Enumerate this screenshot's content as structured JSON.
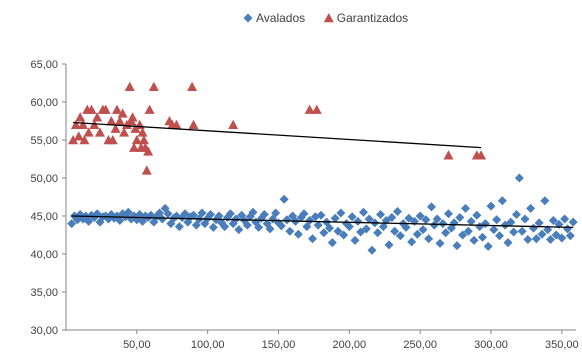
{
  "chart_data": {
    "type": "scatter",
    "legend_position": "top",
    "grid": false,
    "xlim": [
      0,
      360
    ],
    "ylim": [
      30,
      65
    ],
    "x_ticks": [
      50,
      100,
      150,
      200,
      250,
      300,
      350
    ],
    "x_tick_labels": [
      "50,00",
      "100,00",
      "150,00",
      "200,00",
      "250,00",
      "300,00",
      "350,00"
    ],
    "y_ticks": [
      30,
      35,
      40,
      45,
      50,
      55,
      60,
      65
    ],
    "y_tick_labels": [
      "30,00",
      "35,00",
      "40,00",
      "45,00",
      "50,00",
      "55,00",
      "60,00",
      "65,00"
    ],
    "series": [
      {
        "name": "Avalados",
        "marker": "diamond",
        "color": "#4a7ebb",
        "points": [
          [
            4,
            44.0
          ],
          [
            6,
            45.0
          ],
          [
            8,
            44.5
          ],
          [
            10,
            45.2
          ],
          [
            12,
            44.6
          ],
          [
            14,
            45.0
          ],
          [
            16,
            44.3
          ],
          [
            18,
            45.1
          ],
          [
            20,
            44.8
          ],
          [
            22,
            45.3
          ],
          [
            24,
            44.2
          ],
          [
            26,
            44.9
          ],
          [
            28,
            45.0
          ],
          [
            30,
            44.6
          ],
          [
            32,
            45.2
          ],
          [
            34,
            44.7
          ],
          [
            36,
            45.0
          ],
          [
            38,
            44.4
          ],
          [
            40,
            45.3
          ],
          [
            42,
            44.9
          ],
          [
            44,
            45.5
          ],
          [
            46,
            44.6
          ],
          [
            48,
            45.0
          ],
          [
            50,
            44.5
          ],
          [
            52,
            45.2
          ],
          [
            54,
            44.3
          ],
          [
            56,
            45.0
          ],
          [
            58,
            44.8
          ],
          [
            60,
            45.1
          ],
          [
            62,
            44.2
          ],
          [
            64,
            44.9
          ],
          [
            66,
            45.4
          ],
          [
            68,
            44.6
          ],
          [
            70,
            46.0
          ],
          [
            72,
            45.3
          ],
          [
            74,
            44.0
          ],
          [
            76,
            44.7
          ],
          [
            78,
            45.0
          ],
          [
            80,
            43.6
          ],
          [
            82,
            44.8
          ],
          [
            84,
            45.3
          ],
          [
            86,
            44.2
          ],
          [
            88,
            44.9
          ],
          [
            90,
            45.1
          ],
          [
            92,
            43.8
          ],
          [
            94,
            44.6
          ],
          [
            96,
            45.4
          ],
          [
            98,
            44.0
          ],
          [
            100,
            44.7
          ],
          [
            102,
            45.2
          ],
          [
            104,
            43.5
          ],
          [
            106,
            44.5
          ],
          [
            108,
            45.0
          ],
          [
            110,
            44.1
          ],
          [
            112,
            43.6
          ],
          [
            114,
            44.8
          ],
          [
            116,
            45.3
          ],
          [
            118,
            44.0
          ],
          [
            120,
            44.6
          ],
          [
            122,
            43.2
          ],
          [
            124,
            45.1
          ],
          [
            126,
            44.4
          ],
          [
            128,
            43.8
          ],
          [
            130,
            44.9
          ],
          [
            132,
            45.5
          ],
          [
            134,
            44.2
          ],
          [
            136,
            43.5
          ],
          [
            138,
            44.7
          ],
          [
            140,
            45.2
          ],
          [
            142,
            44.0
          ],
          [
            144,
            43.3
          ],
          [
            146,
            44.6
          ],
          [
            148,
            45.4
          ],
          [
            150,
            44.1
          ],
          [
            152,
            43.7
          ],
          [
            154,
            47.2
          ],
          [
            156,
            44.5
          ],
          [
            158,
            43.0
          ],
          [
            160,
            45.0
          ],
          [
            162,
            44.3
          ],
          [
            164,
            42.6
          ],
          [
            166,
            44.8
          ],
          [
            168,
            45.3
          ],
          [
            170,
            43.6
          ],
          [
            172,
            44.4
          ],
          [
            174,
            42.0
          ],
          [
            176,
            44.9
          ],
          [
            178,
            43.8
          ],
          [
            180,
            45.1
          ],
          [
            182,
            42.8
          ],
          [
            184,
            44.2
          ],
          [
            186,
            43.4
          ],
          [
            188,
            41.5
          ],
          [
            190,
            44.7
          ],
          [
            192,
            43.0
          ],
          [
            194,
            45.4
          ],
          [
            196,
            42.5
          ],
          [
            198,
            44.0
          ],
          [
            200,
            43.6
          ],
          [
            202,
            44.9
          ],
          [
            204,
            41.8
          ],
          [
            206,
            44.3
          ],
          [
            208,
            42.9
          ],
          [
            210,
            45.5
          ],
          [
            212,
            43.3
          ],
          [
            214,
            44.6
          ],
          [
            216,
            40.5
          ],
          [
            218,
            44.1
          ],
          [
            220,
            42.8
          ],
          [
            222,
            45.2
          ],
          [
            224,
            43.6
          ],
          [
            226,
            44.4
          ],
          [
            228,
            41.2
          ],
          [
            230,
            44.8
          ],
          [
            232,
            43.0
          ],
          [
            234,
            45.6
          ],
          [
            236,
            42.4
          ],
          [
            238,
            44.0
          ],
          [
            240,
            43.5
          ],
          [
            242,
            44.7
          ],
          [
            244,
            41.6
          ],
          [
            246,
            44.3
          ],
          [
            248,
            42.6
          ],
          [
            250,
            45.0
          ],
          [
            252,
            43.2
          ],
          [
            254,
            44.5
          ],
          [
            256,
            42.0
          ],
          [
            258,
            46.2
          ],
          [
            260,
            43.8
          ],
          [
            262,
            44.6
          ],
          [
            264,
            41.4
          ],
          [
            266,
            44.0
          ],
          [
            268,
            42.8
          ],
          [
            270,
            45.3
          ],
          [
            272,
            43.4
          ],
          [
            274,
            44.1
          ],
          [
            276,
            41.1
          ],
          [
            278,
            44.8
          ],
          [
            280,
            42.5
          ],
          [
            282,
            46.0
          ],
          [
            284,
            43.0
          ],
          [
            286,
            44.3
          ],
          [
            288,
            41.8
          ],
          [
            290,
            45.1
          ],
          [
            292,
            43.6
          ],
          [
            294,
            42.2
          ],
          [
            296,
            44.0
          ],
          [
            298,
            41.0
          ],
          [
            300,
            46.3
          ],
          [
            302,
            43.2
          ],
          [
            304,
            44.5
          ],
          [
            306,
            42.4
          ],
          [
            308,
            47.0
          ],
          [
            310,
            43.8
          ],
          [
            312,
            41.5
          ],
          [
            314,
            44.2
          ],
          [
            316,
            42.9
          ],
          [
            318,
            45.2
          ],
          [
            320,
            50.0
          ],
          [
            322,
            43.0
          ],
          [
            324,
            44.6
          ],
          [
            326,
            41.9
          ],
          [
            328,
            46.0
          ],
          [
            330,
            43.4
          ],
          [
            332,
            42.0
          ],
          [
            334,
            44.1
          ],
          [
            336,
            42.6
          ],
          [
            338,
            47.0
          ],
          [
            340,
            43.2
          ],
          [
            342,
            41.9
          ],
          [
            344,
            44.4
          ],
          [
            346,
            42.5
          ],
          [
            348,
            43.9
          ],
          [
            350,
            42.1
          ],
          [
            352,
            44.6
          ],
          [
            354,
            43.3
          ],
          [
            356,
            42.4
          ],
          [
            358,
            44.2
          ]
        ]
      },
      {
        "name": "Garantizados",
        "marker": "triangle",
        "color": "#c0504d",
        "points": [
          [
            5,
            55
          ],
          [
            7,
            57
          ],
          [
            9,
            55.5
          ],
          [
            10,
            58
          ],
          [
            12,
            57
          ],
          [
            13,
            55
          ],
          [
            15,
            59
          ],
          [
            16,
            56
          ],
          [
            18,
            59
          ],
          [
            20,
            57
          ],
          [
            22,
            58
          ],
          [
            24,
            56
          ],
          [
            26,
            59
          ],
          [
            28,
            59
          ],
          [
            30,
            55
          ],
          [
            32,
            57.5
          ],
          [
            33,
            55
          ],
          [
            35,
            56.5
          ],
          [
            36,
            59
          ],
          [
            38,
            57.5
          ],
          [
            40,
            58.5
          ],
          [
            41,
            56
          ],
          [
            43,
            57
          ],
          [
            45,
            62
          ],
          [
            46,
            57.5
          ],
          [
            47,
            58
          ],
          [
            48,
            54
          ],
          [
            49,
            56.5
          ],
          [
            50,
            55
          ],
          [
            52,
            57
          ],
          [
            53,
            54
          ],
          [
            54,
            56
          ],
          [
            55,
            55
          ],
          [
            56,
            54
          ],
          [
            57,
            51
          ],
          [
            58,
            53.5
          ],
          [
            59,
            59
          ],
          [
            62,
            62
          ],
          [
            73,
            57.5
          ],
          [
            75,
            57
          ],
          [
            78,
            57
          ],
          [
            89,
            62
          ],
          [
            90,
            57
          ],
          [
            118,
            57
          ],
          [
            172,
            59
          ],
          [
            177,
            59
          ],
          [
            270,
            53
          ],
          [
            290,
            53
          ],
          [
            293,
            53
          ]
        ]
      }
    ],
    "trendlines": [
      {
        "series": "Avalados",
        "x": [
          4,
          358
        ],
        "y": [
          45.0,
          43.5
        ]
      },
      {
        "series": "Garantizados",
        "x": [
          5,
          293
        ],
        "y": [
          57.3,
          54.0
        ]
      }
    ]
  }
}
